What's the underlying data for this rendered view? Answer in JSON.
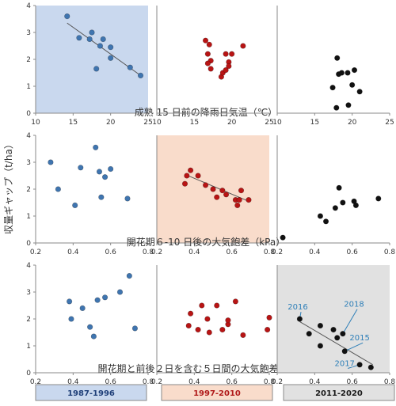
{
  "figure": {
    "y_label": "収量ギャップ（t/ha）",
    "period_legend": [
      {
        "label": "1987-1996",
        "color": "#c9d8ee",
        "text_color": "#1f3f78"
      },
      {
        "label": "1997-2010",
        "color": "#f9dccb",
        "text_color": "#b01a1a"
      },
      {
        "label": "2011-2020",
        "color": "#e1e1e1",
        "text_color": "#1a1a1a"
      }
    ]
  },
  "chart_data": [
    {
      "type": "scatter",
      "row": 1,
      "panel": 1,
      "period": "1987-1996",
      "xlabel": "成熟 15 日前の降雨日気温（℃）",
      "xlim": [
        10,
        25
      ],
      "xticks": [
        10,
        15,
        20,
        25
      ],
      "ylim": [
        0,
        4
      ],
      "yticks": [
        0,
        1,
        2,
        3,
        4
      ],
      "shaded": true,
      "shade_color": "#c9d8ee",
      "marker_color": "#3f75b0",
      "points": [
        [
          14.2,
          3.6
        ],
        [
          15.8,
          2.8
        ],
        [
          17.2,
          2.75
        ],
        [
          17.5,
          3.0
        ],
        [
          18.1,
          1.65
        ],
        [
          18.6,
          2.5
        ],
        [
          19.0,
          2.75
        ],
        [
          20.0,
          2.05
        ],
        [
          20.0,
          2.45
        ],
        [
          22.6,
          1.7
        ],
        [
          24.0,
          1.4
        ]
      ],
      "trendline": [
        [
          14.2,
          3.35
        ],
        [
          24.0,
          1.4
        ]
      ]
    },
    {
      "type": "scatter",
      "row": 1,
      "panel": 2,
      "period": "1997-2010",
      "xlim": [
        10,
        25
      ],
      "xticks": [
        10,
        15,
        20,
        25
      ],
      "ylim": [
        0,
        4
      ],
      "shaded": false,
      "marker_color": "#b81414",
      "points": [
        [
          16.5,
          2.7
        ],
        [
          16.8,
          2.2
        ],
        [
          17.0,
          2.55
        ],
        [
          17.2,
          1.95
        ],
        [
          16.8,
          1.85
        ],
        [
          17.2,
          1.65
        ],
        [
          19.2,
          2.2
        ],
        [
          19.6,
          1.9
        ],
        [
          20.0,
          2.2
        ],
        [
          18.6,
          1.35
        ],
        [
          18.8,
          1.5
        ],
        [
          19.2,
          1.6
        ],
        [
          19.6,
          1.75
        ],
        [
          21.5,
          2.5
        ]
      ]
    },
    {
      "type": "scatter",
      "row": 1,
      "panel": 3,
      "period": "2011-2020",
      "xlim": [
        10,
        25
      ],
      "xticks": [
        10,
        15,
        20,
        25
      ],
      "ylim": [
        0,
        4
      ],
      "shaded": false,
      "marker_color": "#111111",
      "points": [
        [
          18.0,
          2.05
        ],
        [
          17.4,
          0.95
        ],
        [
          18.2,
          1.45
        ],
        [
          18.6,
          1.5
        ],
        [
          19.4,
          1.5
        ],
        [
          20.3,
          1.6
        ],
        [
          21.0,
          0.8
        ],
        [
          20.0,
          1.05
        ],
        [
          17.9,
          0.2
        ],
        [
          19.5,
          0.3
        ]
      ]
    },
    {
      "type": "scatter",
      "row": 2,
      "panel": 1,
      "period": "1987-1996",
      "xlim": [
        0.2,
        0.8
      ],
      "xticks": [
        0.2,
        0.4,
        0.6,
        0.8
      ],
      "ylim": [
        0,
        4
      ],
      "yticks": [
        0,
        1,
        2,
        3,
        4
      ],
      "shaded": false,
      "marker_color": "#3f75b0",
      "points": [
        [
          0.28,
          3.0
        ],
        [
          0.32,
          2.0
        ],
        [
          0.41,
          1.4
        ],
        [
          0.44,
          2.8
        ],
        [
          0.52,
          3.55
        ],
        [
          0.54,
          2.65
        ],
        [
          0.55,
          1.7
        ],
        [
          0.57,
          2.45
        ],
        [
          0.6,
          2.75
        ],
        [
          0.69,
          1.65
        ]
      ]
    },
    {
      "type": "scatter",
      "row": 2,
      "panel": 2,
      "period": "1997-2010",
      "xlabel": "開花期６-10 日後の大気飽差（kPa）",
      "xlim": [
        0.2,
        0.8
      ],
      "xticks": [
        0.2,
        0.4,
        0.6,
        0.8
      ],
      "ylim": [
        0,
        4
      ],
      "shaded": true,
      "shade_color": "#f9dccb",
      "marker_color": "#b81414",
      "points": [
        [
          0.35,
          2.2
        ],
        [
          0.36,
          2.5
        ],
        [
          0.38,
          2.7
        ],
        [
          0.42,
          2.5
        ],
        [
          0.46,
          2.15
        ],
        [
          0.5,
          2.0
        ],
        [
          0.52,
          1.7
        ],
        [
          0.55,
          1.95
        ],
        [
          0.57,
          1.8
        ],
        [
          0.62,
          1.6
        ],
        [
          0.63,
          1.4
        ],
        [
          0.64,
          1.6
        ],
        [
          0.65,
          1.95
        ],
        [
          0.69,
          1.6
        ]
      ],
      "trendline": [
        [
          0.35,
          2.55
        ],
        [
          0.69,
          1.55
        ]
      ]
    },
    {
      "type": "scatter",
      "row": 2,
      "panel": 3,
      "period": "2011-2020",
      "xlim": [
        0.2,
        0.8
      ],
      "xticks": [
        0.2,
        0.4,
        0.6,
        0.8
      ],
      "ylim": [
        0,
        4
      ],
      "shaded": false,
      "marker_color": "#111111",
      "points": [
        [
          0.23,
          0.2
        ],
        [
          0.43,
          1.0
        ],
        [
          0.46,
          0.8
        ],
        [
          0.51,
          1.3
        ],
        [
          0.53,
          2.05
        ],
        [
          0.55,
          1.5
        ],
        [
          0.61,
          1.55
        ],
        [
          0.62,
          1.4
        ],
        [
          0.74,
          1.65
        ]
      ]
    },
    {
      "type": "scatter",
      "row": 3,
      "panel": 1,
      "period": "1987-1996",
      "xlim": [
        0.2,
        0.8
      ],
      "xticks": [
        0.2,
        0.4,
        0.6,
        0.8
      ],
      "ylim": [
        0,
        4
      ],
      "yticks": [
        0,
        1,
        2,
        3,
        4
      ],
      "shaded": false,
      "marker_color": "#3f75b0",
      "points": [
        [
          0.38,
          2.65
        ],
        [
          0.39,
          2.0
        ],
        [
          0.45,
          2.4
        ],
        [
          0.49,
          1.7
        ],
        [
          0.51,
          1.35
        ],
        [
          0.53,
          2.7
        ],
        [
          0.57,
          2.8
        ],
        [
          0.65,
          3.0
        ],
        [
          0.7,
          3.6
        ],
        [
          0.73,
          1.65
        ]
      ]
    },
    {
      "type": "scatter",
      "row": 3,
      "panel": 2,
      "period": "1997-2010",
      "xlabel": "開花期と前後２日を含む５日間の大気飽差（kPa）",
      "xlim": [
        0.2,
        0.8
      ],
      "xticks": [
        0.2,
        0.4,
        0.6,
        0.8
      ],
      "ylim": [
        0,
        4
      ],
      "shaded": false,
      "marker_color": "#b81414",
      "points": [
        [
          0.37,
          1.75
        ],
        [
          0.38,
          2.2
        ],
        [
          0.42,
          1.6
        ],
        [
          0.44,
          2.5
        ],
        [
          0.47,
          2.0
        ],
        [
          0.48,
          1.5
        ],
        [
          0.52,
          2.5
        ],
        [
          0.55,
          1.6
        ],
        [
          0.58,
          1.8
        ],
        [
          0.58,
          1.95
        ],
        [
          0.62,
          2.65
        ],
        [
          0.66,
          1.4
        ],
        [
          0.79,
          1.6
        ],
        [
          0.8,
          2.05
        ]
      ]
    },
    {
      "type": "scatter",
      "row": 3,
      "panel": 3,
      "period": "2011-2020",
      "xlim": [
        0.2,
        0.8
      ],
      "xticks": [
        0.2,
        0.4,
        0.6,
        0.8
      ],
      "ylim": [
        0,
        4
      ],
      "shaded": true,
      "shade_color": "#e1e1e1",
      "marker_color": "#111111",
      "points": [
        [
          0.32,
          2.0
        ],
        [
          0.37,
          1.45
        ],
        [
          0.43,
          1.75
        ],
        [
          0.43,
          1.0
        ],
        [
          0.5,
          1.6
        ],
        [
          0.52,
          1.3
        ],
        [
          0.55,
          1.45
        ],
        [
          0.56,
          0.8
        ],
        [
          0.64,
          0.3
        ],
        [
          0.7,
          0.2
        ]
      ],
      "trendline": [
        [
          0.32,
          1.9
        ],
        [
          0.71,
          0.3
        ]
      ],
      "annotations": [
        {
          "text": "2016",
          "x": 0.31,
          "y": 2.35,
          "anchor_point": [
            0.32,
            2.0
          ]
        },
        {
          "text": "2018",
          "x": 0.61,
          "y": 2.45,
          "anchor_point": [
            0.55,
            1.45
          ]
        },
        {
          "text": "2015",
          "x": 0.64,
          "y": 1.2,
          "anchor_point": [
            0.56,
            0.8
          ]
        },
        {
          "text": "2017",
          "x": 0.56,
          "y": 0.25,
          "anchor_point": [
            0.64,
            0.3
          ]
        }
      ],
      "annotation_color": "#2e7fb8"
    }
  ]
}
